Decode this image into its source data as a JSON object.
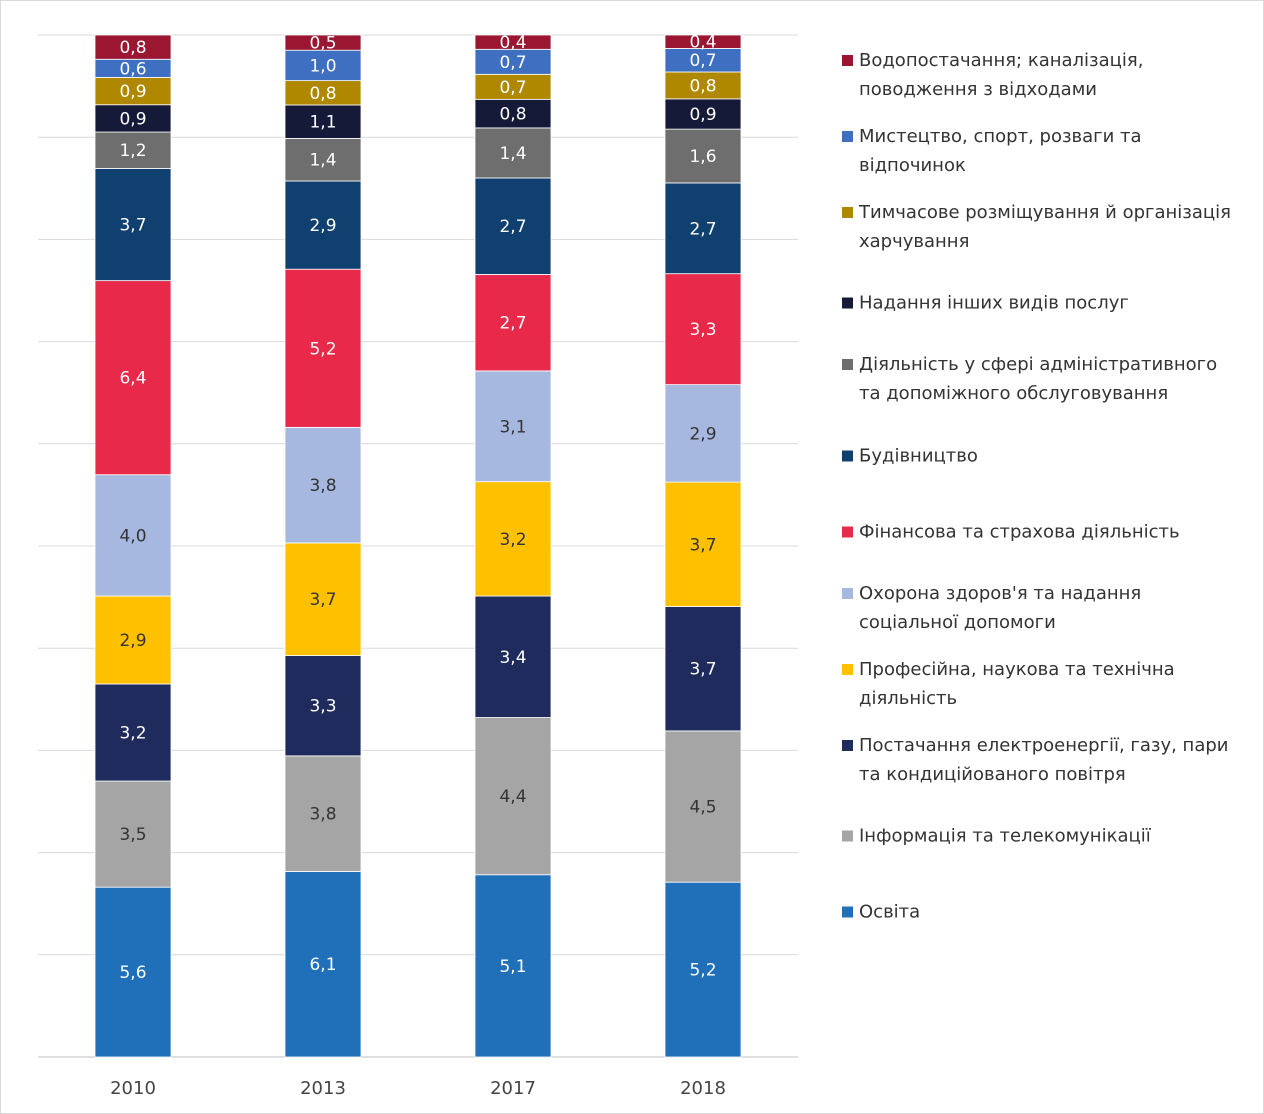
{
  "chart_data": {
    "type": "bar",
    "stacking": "percent",
    "categories": [
      "2010",
      "2013",
      "2017",
      "2018"
    ],
    "ylim": [
      0,
      100
    ],
    "yticks": [
      0,
      10,
      20,
      30,
      40,
      50,
      60,
      70,
      80,
      90,
      100
    ],
    "grid": true,
    "tick_labels": false,
    "legend": "right",
    "series": [
      {
        "name": "Освіта",
        "color": "#1f70b8",
        "label_color": "#ffffff",
        "values": [
          5.6,
          6.1,
          5.1,
          5.2
        ],
        "value_labels": [
          "5,6",
          "6,1",
          "5,1",
          "5,2"
        ]
      },
      {
        "name": "Інформація та телекомунікації",
        "color": "#a5a5a5",
        "label_color": "#333333",
        "values": [
          3.5,
          3.8,
          4.4,
          4.5
        ],
        "value_labels": [
          "3,5",
          "3,8",
          "4,4",
          "4,5"
        ]
      },
      {
        "name": "Постачання електроенергії, газу, пари та кондиційованого повітря",
        "color": "#1f2b5c",
        "label_color": "#ffffff",
        "values": [
          3.2,
          3.3,
          3.4,
          3.7
        ],
        "value_labels": [
          "3,2",
          "3,3",
          "3,4",
          "3,7"
        ]
      },
      {
        "name": "Професійна, наукова та технічна діяльність",
        "color": "#ffc000",
        "label_color": "#333333",
        "values": [
          2.9,
          3.7,
          3.2,
          3.7
        ],
        "value_labels": [
          "2,9",
          "3,7",
          "3,2",
          "3,7"
        ]
      },
      {
        "name": "Охорона здоров'я та надання соціальної допомоги",
        "color": "#a6b8df",
        "label_color": "#333333",
        "values": [
          4.0,
          3.8,
          3.1,
          2.9
        ],
        "value_labels": [
          "4,0",
          "3,8",
          "3,1",
          "2,9"
        ]
      },
      {
        "name": "Фінансова та страхова діяльність",
        "color": "#e8294a",
        "label_color": "#ffffff",
        "values": [
          6.4,
          5.2,
          2.7,
          3.3
        ],
        "value_labels": [
          "6,4",
          "5,2",
          "2,7",
          "3,3"
        ]
      },
      {
        "name": "Будівництво",
        "color": "#0f406f",
        "label_color": "#ffffff",
        "values": [
          3.7,
          2.9,
          2.7,
          2.7
        ],
        "value_labels": [
          "3,7",
          "2,9",
          "2,7",
          "2,7"
        ]
      },
      {
        "name": "Діяльність у сфері адміністративного та допоміжного обслуговування",
        "color": "#6e6e6e",
        "label_color": "#ffffff",
        "values": [
          1.2,
          1.4,
          1.4,
          1.6
        ],
        "value_labels": [
          "1,2",
          "1,4",
          "1,4",
          "1,6"
        ]
      },
      {
        "name": "Надання інших видів послуг",
        "color": "#151a38",
        "label_color": "#ffffff",
        "values": [
          0.9,
          1.1,
          0.8,
          0.9
        ],
        "value_labels": [
          "0,9",
          "1,1",
          "0,8",
          "0,9"
        ]
      },
      {
        "name": "Тимчасове розміщування й організація харчування",
        "color": "#b08800",
        "label_color": "#ffffff",
        "values": [
          0.9,
          0.8,
          0.7,
          0.8
        ],
        "value_labels": [
          "0,9",
          "0,8",
          "0,7",
          "0,8"
        ]
      },
      {
        "name": "Мистецтво, спорт, розваги та відпочинок",
        "color": "#3e6fc0",
        "label_color": "#ffffff",
        "values": [
          0.6,
          1.0,
          0.7,
          0.7
        ],
        "value_labels": [
          "0,6",
          "1,0",
          "0,7",
          "0,7"
        ]
      },
      {
        "name": "Водопостачання; каналізація, поводження з відходами",
        "color": "#9a1631",
        "label_color": "#ffffff",
        "values": [
          0.8,
          0.5,
          0.4,
          0.4
        ],
        "value_labels": [
          "0,8",
          "0,5",
          "0,4",
          "0,4"
        ]
      }
    ]
  }
}
